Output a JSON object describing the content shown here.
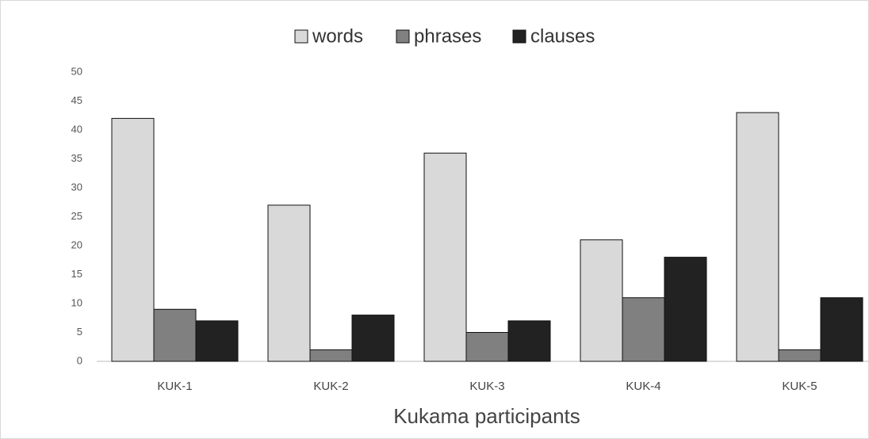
{
  "chart_data": {
    "type": "bar",
    "x_label": "Kukama participants",
    "categories": [
      "KUK-1",
      "KUK-2",
      "KUK-3",
      "KUK-4",
      "KUK-5"
    ],
    "series": [
      {
        "name": "words",
        "color": "#d9d9d9",
        "values": [
          42,
          27,
          36,
          21,
          43
        ]
      },
      {
        "name": "phrases",
        "color": "#808080",
        "values": [
          9,
          2,
          5,
          11,
          2
        ]
      },
      {
        "name": "clauses",
        "color": "#222222",
        "values": [
          7,
          8,
          7,
          18,
          11
        ]
      }
    ],
    "ylim": [
      0,
      50
    ],
    "yticks": [
      0,
      5,
      10,
      15,
      20,
      25,
      30,
      35,
      40,
      45,
      50
    ],
    "grid": false,
    "legend": "top"
  }
}
